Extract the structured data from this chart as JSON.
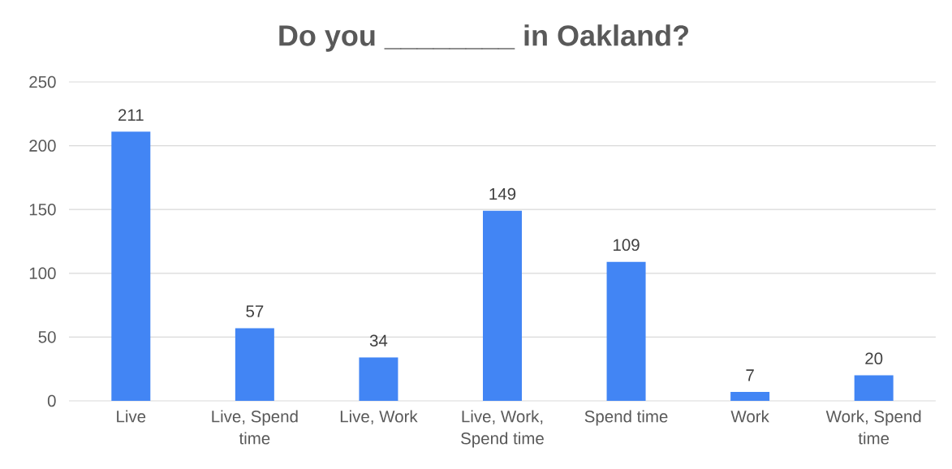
{
  "chart_data": {
    "type": "bar",
    "title": "Do you ________ in Oakland?",
    "categories": [
      "Live",
      "Live, Spend time",
      "Live, Work",
      "Live, Work, Spend time",
      "Spend time",
      "Work",
      "Work, Spend time"
    ],
    "values": [
      211,
      57,
      34,
      149,
      109,
      7,
      20
    ],
    "color": "#4285f4",
    "ylim": [
      0,
      250
    ],
    "yticks": [
      0,
      50,
      100,
      150,
      200,
      250
    ],
    "grid": "y",
    "data_labels": true
  }
}
